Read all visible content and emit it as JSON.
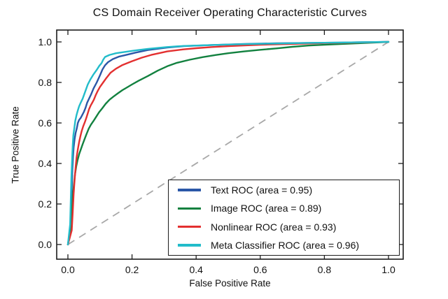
{
  "figure": {
    "title": "CS Domain Receiver Operating Characteristic Curves",
    "xlabel": "False Positive Rate",
    "ylabel": "True Positive Rate",
    "background_color": "#ffffff",
    "frame_color": "#1c1c1c",
    "tick_label_color": "#111111"
  },
  "axes": {
    "x_tick_labels": [
      "0.0",
      "0.2",
      "0.4",
      "0.6",
      "0.8",
      "1.0"
    ],
    "y_tick_labels": [
      "0.0",
      "0.2",
      "0.4",
      "0.6",
      "0.8",
      "1.0"
    ]
  },
  "legend": {
    "items": [
      {
        "id": "text",
        "label": "Text ROC (area = 0.95)",
        "color": "#2b57a7"
      },
      {
        "id": "image",
        "label": "Image ROC (area = 0.89)",
        "color": "#12813f"
      },
      {
        "id": "nonlinear",
        "label": "Nonlinear ROC (area = 0.93)",
        "color": "#e33030"
      },
      {
        "id": "meta",
        "label": "Meta Classifier ROC (area = 0.96)",
        "color": "#22bcca"
      }
    ]
  },
  "chart_data": {
    "type": "line",
    "title": "CS Domain Receiver Operating Characteristic Curves",
    "xlabel": "False Positive Rate",
    "ylabel": "True Positive Rate",
    "xlim": [
      -0.03,
      1.05
    ],
    "ylim": [
      -0.07,
      1.06
    ],
    "grid": false,
    "legend_position": "lower right",
    "series": [
      {
        "name": "Text ROC",
        "id": "text",
        "area": 0.95,
        "color": "#2b57a7",
        "dashed": false,
        "x": [
          0,
          0.008,
          0.01,
          0.012,
          0.014,
          0.016,
          0.018,
          0.021,
          0.024,
          0.028,
          0.031,
          0.035,
          0.04,
          0.045,
          0.05,
          0.055,
          0.06,
          0.066,
          0.072,
          0.08,
          0.09,
          0.1,
          0.108,
          0.116,
          0.125,
          0.14,
          0.16,
          0.18,
          0.21,
          0.25,
          0.31,
          0.36,
          0.45,
          0.55,
          0.65,
          0.75,
          0.85,
          1.0
        ],
        "y": [
          0,
          0.08,
          0.18,
          0.28,
          0.37,
          0.43,
          0.48,
          0.52,
          0.55,
          0.575,
          0.6,
          0.615,
          0.625,
          0.64,
          0.655,
          0.675,
          0.7,
          0.72,
          0.74,
          0.77,
          0.8,
          0.835,
          0.865,
          0.885,
          0.9,
          0.915,
          0.928,
          0.935,
          0.947,
          0.96,
          0.972,
          0.979,
          0.985,
          0.99,
          0.993,
          0.995,
          0.997,
          1.0
        ]
      },
      {
        "name": "Image ROC",
        "id": "image",
        "area": 0.89,
        "color": "#12813f",
        "dashed": false,
        "x": [
          0,
          0.01,
          0.013,
          0.016,
          0.019,
          0.022,
          0.026,
          0.03,
          0.035,
          0.04,
          0.046,
          0.052,
          0.058,
          0.065,
          0.072,
          0.08,
          0.088,
          0.097,
          0.107,
          0.118,
          0.13,
          0.142,
          0.155,
          0.17,
          0.185,
          0.2,
          0.22,
          0.25,
          0.28,
          0.31,
          0.34,
          0.38,
          0.42,
          0.46,
          0.5,
          0.55,
          0.6,
          0.65,
          0.7,
          0.75,
          0.8,
          0.9,
          1.0
        ],
        "y": [
          0,
          0.1,
          0.18,
          0.25,
          0.3,
          0.345,
          0.385,
          0.415,
          0.445,
          0.468,
          0.495,
          0.52,
          0.545,
          0.572,
          0.592,
          0.61,
          0.63,
          0.652,
          0.672,
          0.695,
          0.715,
          0.73,
          0.745,
          0.762,
          0.776,
          0.79,
          0.808,
          0.832,
          0.858,
          0.88,
          0.897,
          0.912,
          0.925,
          0.935,
          0.944,
          0.953,
          0.961,
          0.968,
          0.976,
          0.982,
          0.986,
          0.993,
          1.0
        ]
      },
      {
        "name": "Nonlinear ROC",
        "id": "nonlinear",
        "area": 0.93,
        "color": "#e33030",
        "dashed": false,
        "x": [
          0,
          0.012,
          0.015,
          0.018,
          0.021,
          0.024,
          0.027,
          0.031,
          0.035,
          0.039,
          0.043,
          0.048,
          0.053,
          0.058,
          0.062,
          0.066,
          0.071,
          0.076,
          0.081,
          0.087,
          0.093,
          0.1,
          0.11,
          0.12,
          0.133,
          0.15,
          0.17,
          0.185,
          0.2,
          0.23,
          0.26,
          0.31,
          0.36,
          0.4,
          0.45,
          0.5,
          0.6,
          0.7,
          0.8,
          0.9,
          1.0
        ],
        "y": [
          0,
          0.07,
          0.16,
          0.25,
          0.32,
          0.38,
          0.43,
          0.47,
          0.505,
          0.535,
          0.56,
          0.585,
          0.605,
          0.628,
          0.648,
          0.668,
          0.686,
          0.7,
          0.715,
          0.738,
          0.758,
          0.778,
          0.8,
          0.822,
          0.848,
          0.868,
          0.886,
          0.895,
          0.905,
          0.922,
          0.936,
          0.953,
          0.963,
          0.969,
          0.975,
          0.979,
          0.986,
          0.99,
          0.994,
          0.997,
          1.0
        ]
      },
      {
        "name": "Meta Classifier ROC",
        "id": "meta",
        "area": 0.96,
        "color": "#22bcca",
        "dashed": false,
        "x": [
          0,
          0.007,
          0.009,
          0.011,
          0.013,
          0.015,
          0.017,
          0.02,
          0.023,
          0.027,
          0.031,
          0.035,
          0.04,
          0.046,
          0.051,
          0.057,
          0.062,
          0.07,
          0.08,
          0.09,
          0.098,
          0.105,
          0.11,
          0.116,
          0.13,
          0.15,
          0.18,
          0.21,
          0.25,
          0.31,
          0.36,
          0.45,
          0.55,
          0.65,
          0.75,
          0.85,
          1.0
        ],
        "y": [
          0,
          0.1,
          0.22,
          0.33,
          0.42,
          0.49,
          0.54,
          0.575,
          0.61,
          0.64,
          0.662,
          0.682,
          0.7,
          0.72,
          0.742,
          0.768,
          0.79,
          0.815,
          0.84,
          0.862,
          0.882,
          0.895,
          0.912,
          0.926,
          0.936,
          0.944,
          0.951,
          0.958,
          0.966,
          0.975,
          0.98,
          0.985,
          0.989,
          0.992,
          0.995,
          0.997,
          1.0
        ]
      },
      {
        "name": "Chance diagonal",
        "id": "chance",
        "color": "#a8a8a8",
        "dashed": true,
        "x": [
          0,
          1
        ],
        "y": [
          0,
          1
        ]
      }
    ]
  }
}
